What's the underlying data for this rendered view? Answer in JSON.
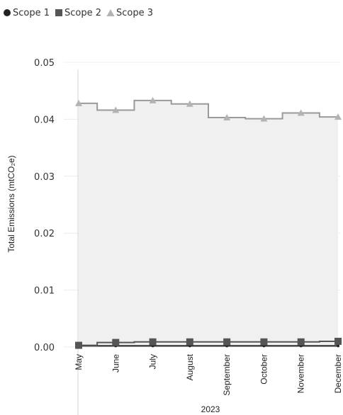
{
  "legend": [
    {
      "label": "Scope 1",
      "marker": "circle",
      "color": "#222222"
    },
    {
      "label": "Scope 2",
      "marker": "square",
      "color": "#555555"
    },
    {
      "label": "Scope 3",
      "marker": "triangle",
      "color": "#b3b3b3"
    }
  ],
  "chart_data": {
    "type": "area",
    "categories": [
      "May",
      "June",
      "July",
      "August",
      "September",
      "October",
      "November",
      "December"
    ],
    "x_group_label": "2023",
    "ylabel": "Total Emissions (mtCO₂e)",
    "ylim": [
      0,
      0.05
    ],
    "yticks": [
      0,
      0.01,
      0.02,
      0.03,
      0.04,
      0.05
    ],
    "ytick_labels": [
      "0.00",
      "0.01",
      "0.02",
      "0.03",
      "0.04",
      "0.05"
    ],
    "grid": true,
    "step": true,
    "legend_position": "top-left",
    "series": [
      {
        "name": "Scope 1",
        "marker": "circle",
        "color": "#222222",
        "values": [
          0.0002,
          0.0002,
          0.0002,
          0.0002,
          0.0002,
          0.0002,
          0.0002,
          0.0002
        ]
      },
      {
        "name": "Scope 2",
        "marker": "square",
        "color": "#555555",
        "values": [
          0.0003,
          0.0008,
          0.0009,
          0.0009,
          0.0009,
          0.0009,
          0.0009,
          0.001
        ]
      },
      {
        "name": "Scope 3",
        "marker": "triangle",
        "color": "#b3b3b3",
        "line_color": "#9a9a9a",
        "fill": "#f0f0f0",
        "values": [
          0.0428,
          0.0416,
          0.0433,
          0.0427,
          0.0403,
          0.0401,
          0.0411,
          0.0404
        ]
      }
    ]
  }
}
